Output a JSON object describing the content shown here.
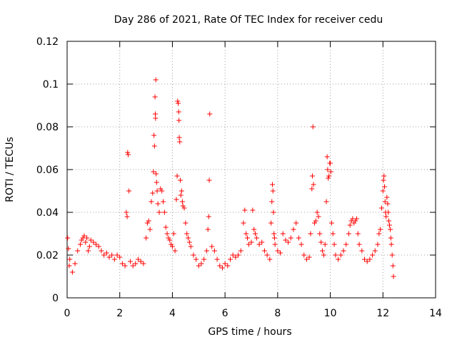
{
  "chart_data": {
    "type": "scatter",
    "title": "Day 286 of 2021, Rate Of TEC Index for receiver cedu",
    "xlabel": "GPS time / hours",
    "ylabel": "ROTI / TECUs",
    "xlim": [
      0,
      14
    ],
    "ylim": [
      0,
      0.12
    ],
    "xticks": [
      0,
      2,
      4,
      6,
      8,
      10,
      12,
      14
    ],
    "yticks": [
      0,
      0.02,
      0.04,
      0.06,
      0.08,
      0.1,
      0.12
    ],
    "xtick_labels": [
      "0",
      "2",
      "4",
      "6",
      "8",
      "10",
      "12",
      "14"
    ],
    "ytick_labels": [
      "0",
      "0.02",
      "0.04",
      "0.06",
      "0.08",
      "0.1",
      "0.12"
    ],
    "grid": true,
    "marker": "+",
    "color": "#ff0000",
    "series": [
      {
        "name": "ROTI",
        "points": [
          [
            0.02,
            0.028
          ],
          [
            0.05,
            0.023
          ],
          [
            0.08,
            0.015
          ],
          [
            0.1,
            0.018
          ],
          [
            0.2,
            0.012
          ],
          [
            0.3,
            0.016
          ],
          [
            0.4,
            0.022
          ],
          [
            0.5,
            0.025
          ],
          [
            0.55,
            0.027
          ],
          [
            0.6,
            0.028
          ],
          [
            0.65,
            0.029
          ],
          [
            0.7,
            0.026
          ],
          [
            0.75,
            0.028
          ],
          [
            0.8,
            0.022
          ],
          [
            0.85,
            0.024
          ],
          [
            0.9,
            0.027
          ],
          [
            1.0,
            0.026
          ],
          [
            1.1,
            0.025
          ],
          [
            1.2,
            0.024
          ],
          [
            1.3,
            0.022
          ],
          [
            1.4,
            0.02
          ],
          [
            1.5,
            0.021
          ],
          [
            1.6,
            0.019
          ],
          [
            1.7,
            0.02
          ],
          [
            1.8,
            0.018
          ],
          [
            1.9,
            0.02
          ],
          [
            2.0,
            0.019
          ],
          [
            2.1,
            0.016
          ],
          [
            2.2,
            0.015
          ],
          [
            2.25,
            0.04
          ],
          [
            2.28,
            0.038
          ],
          [
            2.3,
            0.068
          ],
          [
            2.32,
            0.067
          ],
          [
            2.35,
            0.05
          ],
          [
            2.4,
            0.017
          ],
          [
            2.5,
            0.015
          ],
          [
            2.6,
            0.016
          ],
          [
            2.7,
            0.018
          ],
          [
            2.8,
            0.017
          ],
          [
            2.9,
            0.016
          ],
          [
            3.0,
            0.028
          ],
          [
            3.05,
            0.035
          ],
          [
            3.1,
            0.036
          ],
          [
            3.15,
            0.032
          ],
          [
            3.2,
            0.045
          ],
          [
            3.25,
            0.049
          ],
          [
            3.28,
            0.059
          ],
          [
            3.3,
            0.076
          ],
          [
            3.32,
            0.071
          ],
          [
            3.34,
            0.094
          ],
          [
            3.35,
            0.086
          ],
          [
            3.36,
            0.084
          ],
          [
            3.37,
            0.102
          ],
          [
            3.38,
            0.058
          ],
          [
            3.4,
            0.054
          ],
          [
            3.42,
            0.05
          ],
          [
            3.45,
            0.044
          ],
          [
            3.5,
            0.04
          ],
          [
            3.55,
            0.051
          ],
          [
            3.6,
            0.05
          ],
          [
            3.65,
            0.045
          ],
          [
            3.7,
            0.04
          ],
          [
            3.75,
            0.033
          ],
          [
            3.8,
            0.03
          ],
          [
            3.85,
            0.028
          ],
          [
            3.9,
            0.027
          ],
          [
            3.95,
            0.025
          ],
          [
            4.0,
            0.024
          ],
          [
            4.05,
            0.03
          ],
          [
            4.1,
            0.022
          ],
          [
            4.15,
            0.046
          ],
          [
            4.18,
            0.057
          ],
          [
            4.2,
            0.092
          ],
          [
            4.22,
            0.091
          ],
          [
            4.24,
            0.087
          ],
          [
            4.25,
            0.083
          ],
          [
            4.26,
            0.075
          ],
          [
            4.28,
            0.073
          ],
          [
            4.3,
            0.055
          ],
          [
            4.32,
            0.048
          ],
          [
            4.35,
            0.05
          ],
          [
            4.38,
            0.045
          ],
          [
            4.4,
            0.043
          ],
          [
            4.45,
            0.042
          ],
          [
            4.5,
            0.035
          ],
          [
            4.55,
            0.03
          ],
          [
            4.6,
            0.028
          ],
          [
            4.65,
            0.026
          ],
          [
            4.7,
            0.024
          ],
          [
            4.8,
            0.02
          ],
          [
            4.9,
            0.018
          ],
          [
            5.0,
            0.015
          ],
          [
            5.1,
            0.016
          ],
          [
            5.2,
            0.018
          ],
          [
            5.3,
            0.022
          ],
          [
            5.35,
            0.032
          ],
          [
            5.38,
            0.038
          ],
          [
            5.4,
            0.055
          ],
          [
            5.42,
            0.086
          ],
          [
            5.5,
            0.024
          ],
          [
            5.6,
            0.022
          ],
          [
            5.7,
            0.018
          ],
          [
            5.8,
            0.015
          ],
          [
            5.9,
            0.014
          ],
          [
            6.0,
            0.016
          ],
          [
            6.1,
            0.015
          ],
          [
            6.2,
            0.018
          ],
          [
            6.3,
            0.02
          ],
          [
            6.4,
            0.019
          ],
          [
            6.5,
            0.02
          ],
          [
            6.6,
            0.022
          ],
          [
            6.7,
            0.035
          ],
          [
            6.75,
            0.041
          ],
          [
            6.8,
            0.03
          ],
          [
            6.85,
            0.028
          ],
          [
            6.9,
            0.025
          ],
          [
            7.0,
            0.026
          ],
          [
            7.05,
            0.041
          ],
          [
            7.1,
            0.032
          ],
          [
            7.15,
            0.03
          ],
          [
            7.2,
            0.028
          ],
          [
            7.3,
            0.025
          ],
          [
            7.4,
            0.026
          ],
          [
            7.5,
            0.022
          ],
          [
            7.6,
            0.02
          ],
          [
            7.7,
            0.018
          ],
          [
            7.75,
            0.035
          ],
          [
            7.78,
            0.045
          ],
          [
            7.8,
            0.053
          ],
          [
            7.82,
            0.05
          ],
          [
            7.84,
            0.04
          ],
          [
            7.86,
            0.03
          ],
          [
            7.88,
            0.028
          ],
          [
            7.9,
            0.025
          ],
          [
            8.0,
            0.022
          ],
          [
            8.1,
            0.021
          ],
          [
            8.2,
            0.03
          ],
          [
            8.3,
            0.027
          ],
          [
            8.4,
            0.026
          ],
          [
            8.5,
            0.028
          ],
          [
            8.6,
            0.032
          ],
          [
            8.7,
            0.035
          ],
          [
            8.8,
            0.028
          ],
          [
            8.9,
            0.025
          ],
          [
            9.0,
            0.02
          ],
          [
            9.1,
            0.018
          ],
          [
            9.2,
            0.019
          ],
          [
            9.25,
            0.03
          ],
          [
            9.3,
            0.051
          ],
          [
            9.32,
            0.057
          ],
          [
            9.34,
            0.08
          ],
          [
            9.36,
            0.053
          ],
          [
            9.4,
            0.035
          ],
          [
            9.45,
            0.036
          ],
          [
            9.5,
            0.04
          ],
          [
            9.55,
            0.038
          ],
          [
            9.6,
            0.03
          ],
          [
            9.65,
            0.026
          ],
          [
            9.7,
            0.022
          ],
          [
            9.75,
            0.02
          ],
          [
            9.8,
            0.025
          ],
          [
            9.85,
            0.045
          ],
          [
            9.88,
            0.066
          ],
          [
            9.9,
            0.06
          ],
          [
            9.92,
            0.056
          ],
          [
            9.95,
            0.057
          ],
          [
            9.98,
            0.063
          ],
          [
            10.0,
            0.063
          ],
          [
            10.02,
            0.059
          ],
          [
            10.05,
            0.035
          ],
          [
            10.1,
            0.03
          ],
          [
            10.15,
            0.025
          ],
          [
            10.2,
            0.02
          ],
          [
            10.3,
            0.018
          ],
          [
            10.4,
            0.02
          ],
          [
            10.5,
            0.022
          ],
          [
            10.6,
            0.025
          ],
          [
            10.7,
            0.03
          ],
          [
            10.75,
            0.034
          ],
          [
            10.8,
            0.036
          ],
          [
            10.85,
            0.037
          ],
          [
            10.9,
            0.035
          ],
          [
            10.95,
            0.036
          ],
          [
            11.0,
            0.037
          ],
          [
            11.05,
            0.03
          ],
          [
            11.1,
            0.025
          ],
          [
            11.2,
            0.022
          ],
          [
            11.3,
            0.018
          ],
          [
            11.4,
            0.017
          ],
          [
            11.5,
            0.018
          ],
          [
            11.6,
            0.02
          ],
          [
            11.7,
            0.022
          ],
          [
            11.8,
            0.025
          ],
          [
            11.85,
            0.03
          ],
          [
            11.9,
            0.032
          ],
          [
            11.95,
            0.042
          ],
          [
            12.0,
            0.05
          ],
          [
            12.02,
            0.055
          ],
          [
            12.04,
            0.057
          ],
          [
            12.06,
            0.052
          ],
          [
            12.08,
            0.045
          ],
          [
            12.1,
            0.04
          ],
          [
            12.12,
            0.038
          ],
          [
            12.15,
            0.047
          ],
          [
            12.18,
            0.044
          ],
          [
            12.2,
            0.04
          ],
          [
            12.22,
            0.036
          ],
          [
            12.25,
            0.034
          ],
          [
            12.28,
            0.032
          ],
          [
            12.3,
            0.028
          ],
          [
            12.32,
            0.025
          ],
          [
            12.35,
            0.02
          ],
          [
            12.38,
            0.015
          ],
          [
            12.4,
            0.01
          ]
        ]
      }
    ]
  }
}
